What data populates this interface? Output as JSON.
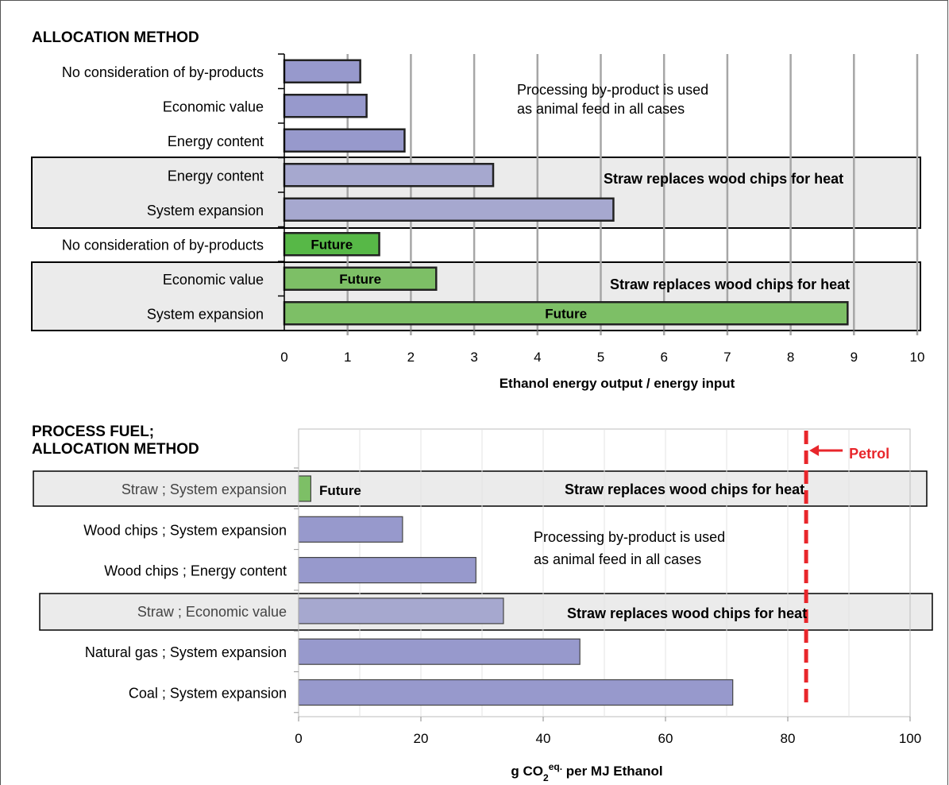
{
  "colors": {
    "bar_blue": "#9799cc",
    "bar_blue_light": "#a6a8cf",
    "bar_green": "#7dbf66",
    "bar_green_bright": "#57b847",
    "box_fill": "#ebebeb",
    "petrol_line": "#e8262b",
    "grid": "#a6a6a6"
  },
  "chart_data": [
    {
      "type": "bar",
      "orientation": "horizontal",
      "heading": "ALLOCATION METHOD",
      "xlabel": "Ethanol energy output / energy input",
      "xlim": [
        0,
        10
      ],
      "xticks": [
        "0",
        "1",
        "2",
        "3",
        "4",
        "5",
        "6",
        "7",
        "8",
        "9",
        "10"
      ],
      "grid": "vertical gridlines at each integer",
      "categories": [
        "No consideration of by-products",
        "Economic value",
        "Energy content",
        "Energy content",
        "System expansion",
        "No consideration of by-products",
        "Economic value",
        "System expansion"
      ],
      "values": [
        1.2,
        1.3,
        1.9,
        3.3,
        5.2,
        1.5,
        2.4,
        8.9
      ],
      "bar_labels": [
        "",
        "",
        "",
        "",
        "",
        "Future",
        "Future",
        "Future"
      ],
      "annotations": {
        "note_line1": "Processing by-product is used",
        "note_line2": "as animal feed in all cases",
        "box_label_1": "Straw replaces  wood chips for heat",
        "box_label_2": "Straw replaces  wood chips for heat"
      }
    },
    {
      "type": "bar",
      "orientation": "horizontal",
      "heading_line1": "PROCESS FUEL;",
      "heading_line2": "ALLOCATION METHOD",
      "xlabel_main": "g CO",
      "xlabel_sub": "2",
      "xlabel_sup": "eq.",
      "xlabel_tail": " per MJ Ethanol",
      "xlim": [
        0,
        100
      ],
      "xticks": [
        "0",
        "20",
        "40",
        "60",
        "80",
        "100"
      ],
      "grid": "light vertical gridlines every 10",
      "categories": [
        "Straw ; System expansion",
        "Wood chips ; System expansion",
        "Wood chips ; Energy content",
        "Straw ; Economic value",
        "Natural gas ; System expansion",
        "Coal ; System expansion"
      ],
      "values": [
        2,
        17,
        29,
        33.5,
        46,
        71
      ],
      "bar_labels": [
        "Future",
        "",
        "",
        "",
        "",
        ""
      ],
      "reference_line": {
        "label": "Petrol",
        "value": 83
      },
      "annotations": {
        "note_line1": "Processing by-product is used",
        "note_line2": "as animal feed in all cases",
        "box_label_1": "Straw replaces wood chips for heat",
        "box_label_2": "Straw replaces wood chips for heat"
      }
    }
  ]
}
